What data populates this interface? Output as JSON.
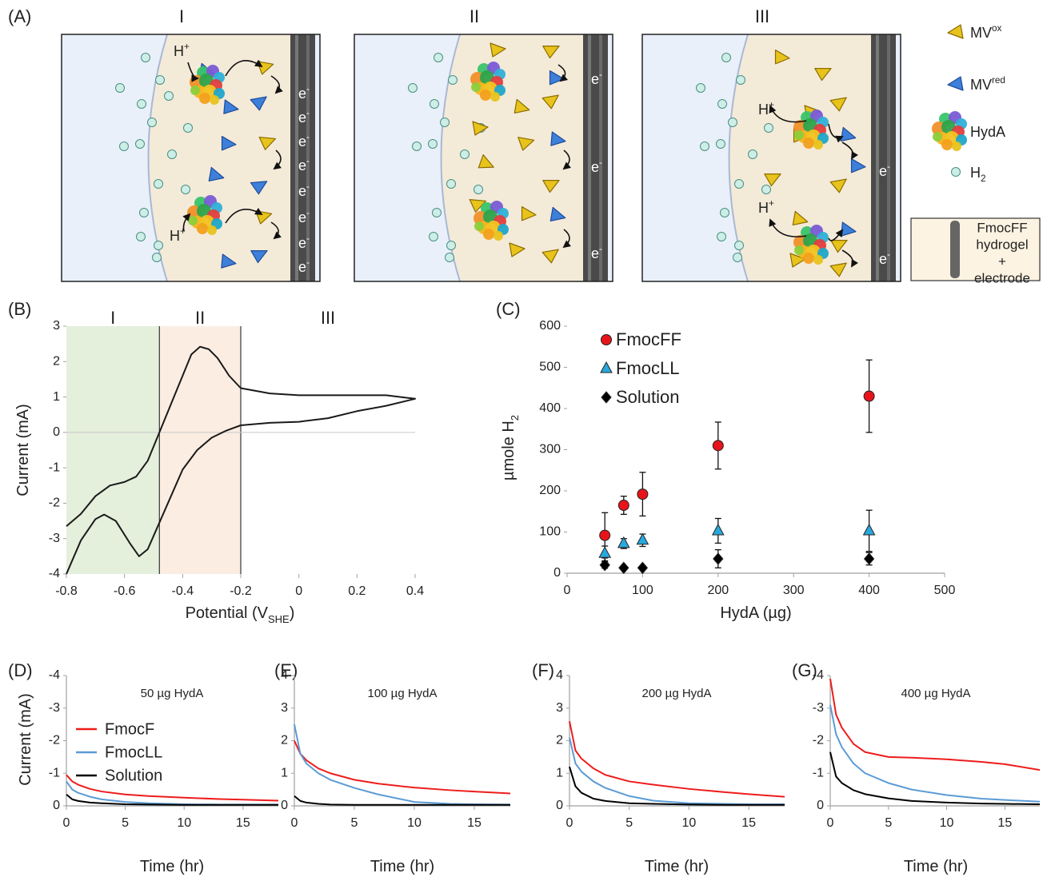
{
  "schematic": {
    "label": "(A)",
    "panels": [
      "I",
      "II",
      "III"
    ],
    "electron": "e",
    "electron_charge": "-",
    "proton": "H",
    "proton_charge": "+",
    "legend": {
      "mv": "MV",
      "ox": "ox",
      "red": "red",
      "hyda": "HydA",
      "h": "H",
      "h_sub": "2",
      "gel": [
        "FmocFF",
        "hydrogel",
        "+",
        "electrode"
      ]
    }
  },
  "chart_data": [
    {
      "type": "line",
      "panel_label": "(B)",
      "y_label": "Current (mA)",
      "x_label": "Potential (V",
      "x_label_sub": "SHE",
      "x_label_end": ")",
      "x": [
        -0.8,
        -0.75,
        -0.7,
        -0.67,
        -0.63,
        -0.58,
        -0.55,
        -0.52,
        -0.48,
        -0.44,
        -0.4,
        -0.35,
        -0.3,
        -0.25,
        -0.2,
        -0.1,
        0,
        0.1,
        0.2,
        0.3,
        0.4,
        0.3,
        0.2,
        0.1,
        0,
        -0.1,
        -0.2,
        -0.24,
        -0.28,
        -0.31,
        -0.34,
        -0.37,
        -0.4,
        -0.44,
        -0.48,
        -0.52,
        -0.56,
        -0.6,
        -0.65,
        -0.7,
        -0.75,
        -0.8
      ],
      "series": [
        {
          "color": "#1a1a1a",
          "values": [
            -4,
            -3.05,
            -2.45,
            -2.32,
            -2.5,
            -3.15,
            -3.5,
            -3.3,
            -2.55,
            -1.8,
            -1.05,
            -0.5,
            -0.15,
            0.05,
            0.2,
            0.27,
            0.3,
            0.4,
            0.6,
            0.75,
            0.95,
            1.05,
            1.05,
            1.05,
            1.05,
            1.1,
            1.25,
            1.6,
            2.1,
            2.35,
            2.42,
            2.2,
            1.6,
            0.8,
            0,
            -0.8,
            -1.25,
            -1.4,
            -1.5,
            -1.8,
            -2.3,
            -2.65
          ]
        }
      ],
      "xlim": [
        -0.8,
        0.4
      ],
      "xticks": [
        -0.8,
        -0.6,
        -0.4,
        -0.2,
        0,
        0.2,
        0.4
      ],
      "ylim": [
        -4,
        3
      ],
      "yticks": [
        -4,
        -3,
        -2,
        -1,
        0,
        1,
        2,
        3
      ],
      "regions": [
        {
          "label": "I",
          "from": -0.8,
          "to": -0.48,
          "color": "#e4efdc"
        },
        {
          "label": "II",
          "from": -0.48,
          "to": -0.2,
          "color": "#fbede2"
        },
        {
          "label": "III",
          "from": -0.2,
          "to": 0.4
        }
      ]
    },
    {
      "type": "scatter",
      "panel_label": "(C)",
      "x_label": "HydA (µg)",
      "y_label": "µmole H",
      "y_label_sub": "2",
      "legend": "upper left",
      "x": [
        50,
        75,
        100,
        200,
        400
      ],
      "series": [
        {
          "name": "FmocFF",
          "color": "#e8141b",
          "marker": "circle",
          "values": [
            92,
            165,
            192,
            310,
            430
          ],
          "errors": [
            55,
            22,
            53,
            57,
            88
          ]
        },
        {
          "name": "FmocLL",
          "color": "#29a8df",
          "marker": "triangle",
          "values": [
            48,
            72,
            80,
            103,
            103
          ],
          "errors": [
            18,
            12,
            15,
            30,
            50
          ]
        },
        {
          "name": "Solution",
          "color": "#000000",
          "marker": "diamond",
          "values": [
            20,
            13,
            13,
            35,
            35
          ],
          "errors": [
            8,
            3,
            3,
            22,
            15
          ]
        }
      ],
      "xlim": [
        0,
        500
      ],
      "xticks": [
        0,
        100,
        200,
        300,
        400,
        500
      ],
      "ylim": [
        0,
        600
      ],
      "yticks": [
        0,
        100,
        200,
        300,
        400,
        500,
        600
      ]
    },
    {
      "type": "line",
      "panel_label": "(D)",
      "title": "50 µg HydA",
      "y_label": "Current (mA)",
      "x_label": "Time (hr)",
      "legend": "left",
      "x": [
        0,
        0.5,
        1,
        2,
        3,
        5,
        7,
        10,
        13,
        15,
        18
      ],
      "series": [
        {
          "name": "FmocF",
          "color": "#ee1c1c",
          "values": [
            -0.95,
            -0.75,
            -0.65,
            -0.52,
            -0.44,
            -0.35,
            -0.3,
            -0.25,
            -0.21,
            -0.19,
            -0.16
          ]
        },
        {
          "name": "FmocLL",
          "color": "#5b9bd5",
          "values": [
            -0.75,
            -0.5,
            -0.4,
            -0.28,
            -0.2,
            -0.12,
            -0.08,
            -0.05,
            -0.04,
            -0.04,
            -0.04
          ]
        },
        {
          "name": "Solution",
          "color": "#000000",
          "values": [
            -0.35,
            -0.2,
            -0.15,
            -0.1,
            -0.08,
            -0.05,
            -0.04,
            -0.03,
            -0.03,
            -0.03,
            -0.03
          ]
        }
      ],
      "xlim": [
        0,
        18
      ],
      "xticks": [
        0,
        5,
        10,
        15
      ],
      "ylim": [
        0,
        -4
      ],
      "yticks": [
        -4,
        -3,
        -2,
        -1,
        0
      ]
    },
    {
      "type": "line",
      "panel_label": "(E)",
      "title": "100 µg HydA",
      "x_label": "Time (hr)",
      "x": [
        0,
        0.5,
        1,
        2,
        3,
        5,
        7,
        10,
        13,
        15,
        18
      ],
      "series": [
        {
          "color": "#ee1c1c",
          "values": [
            2.0,
            1.6,
            1.4,
            1.15,
            1.0,
            0.8,
            0.68,
            0.56,
            0.48,
            0.44,
            0.38
          ]
        },
        {
          "color": "#5b9bd5",
          "values": [
            2.5,
            1.6,
            1.3,
            1.0,
            0.8,
            0.55,
            0.35,
            0.12,
            0.06,
            0.05,
            0.04
          ]
        },
        {
          "color": "#000000",
          "values": [
            0.3,
            0.15,
            0.1,
            0.06,
            0.04,
            0.03,
            0.03,
            0.03,
            0.03,
            0.03,
            0.03
          ]
        }
      ],
      "xlim": [
        0,
        18
      ],
      "xticks": [
        0,
        5,
        10,
        15
      ],
      "ylim": [
        0,
        4
      ],
      "yticks": [
        0,
        1,
        2,
        3,
        4
      ]
    },
    {
      "type": "line",
      "panel_label": "(F)",
      "title": "200 µg HydA",
      "x_label": "Time (hr)",
      "x": [
        0,
        0.5,
        1,
        2,
        3,
        5,
        7,
        10,
        13,
        15,
        18
      ],
      "series": [
        {
          "color": "#ee1c1c",
          "values": [
            2.6,
            1.7,
            1.45,
            1.15,
            0.95,
            0.75,
            0.65,
            0.52,
            0.42,
            0.36,
            0.28
          ]
        },
        {
          "color": "#5b9bd5",
          "values": [
            2.1,
            1.3,
            1.05,
            0.75,
            0.55,
            0.3,
            0.16,
            0.08,
            0.06,
            0.05,
            0.05
          ]
        },
        {
          "color": "#000000",
          "values": [
            1.2,
            0.6,
            0.4,
            0.22,
            0.15,
            0.08,
            0.06,
            0.04,
            0.03,
            0.03,
            0.03
          ]
        }
      ],
      "xlim": [
        0,
        18
      ],
      "xticks": [
        0,
        5,
        10,
        15
      ],
      "ylim": [
        0,
        4
      ],
      "yticks": [
        0,
        1,
        2,
        3,
        4
      ]
    },
    {
      "type": "line",
      "panel_label": "(G)",
      "title": "400 µg HydA",
      "x_label": "Time (hr)",
      "x": [
        0,
        0.5,
        1,
        2,
        3,
        5,
        7,
        10,
        13,
        15,
        18
      ],
      "series": [
        {
          "color": "#ee1c1c",
          "values": [
            -3.9,
            -2.8,
            -2.4,
            -1.9,
            -1.65,
            -1.5,
            -1.48,
            -1.43,
            -1.35,
            -1.28,
            -1.1
          ]
        },
        {
          "color": "#5b9bd5",
          "values": [
            -3.1,
            -2.2,
            -1.8,
            -1.3,
            -1.0,
            -0.7,
            -0.5,
            -0.33,
            -0.22,
            -0.18,
            -0.13
          ]
        },
        {
          "color": "#000000",
          "values": [
            -1.65,
            -0.9,
            -0.7,
            -0.48,
            -0.36,
            -0.23,
            -0.15,
            -0.1,
            -0.07,
            -0.06,
            -0.05
          ]
        }
      ],
      "xlim": [
        0,
        18
      ],
      "xticks": [
        0,
        5,
        10,
        15
      ],
      "ylim": [
        0,
        -4
      ],
      "yticks": [
        -4,
        -3,
        -2,
        -1,
        0
      ]
    }
  ]
}
